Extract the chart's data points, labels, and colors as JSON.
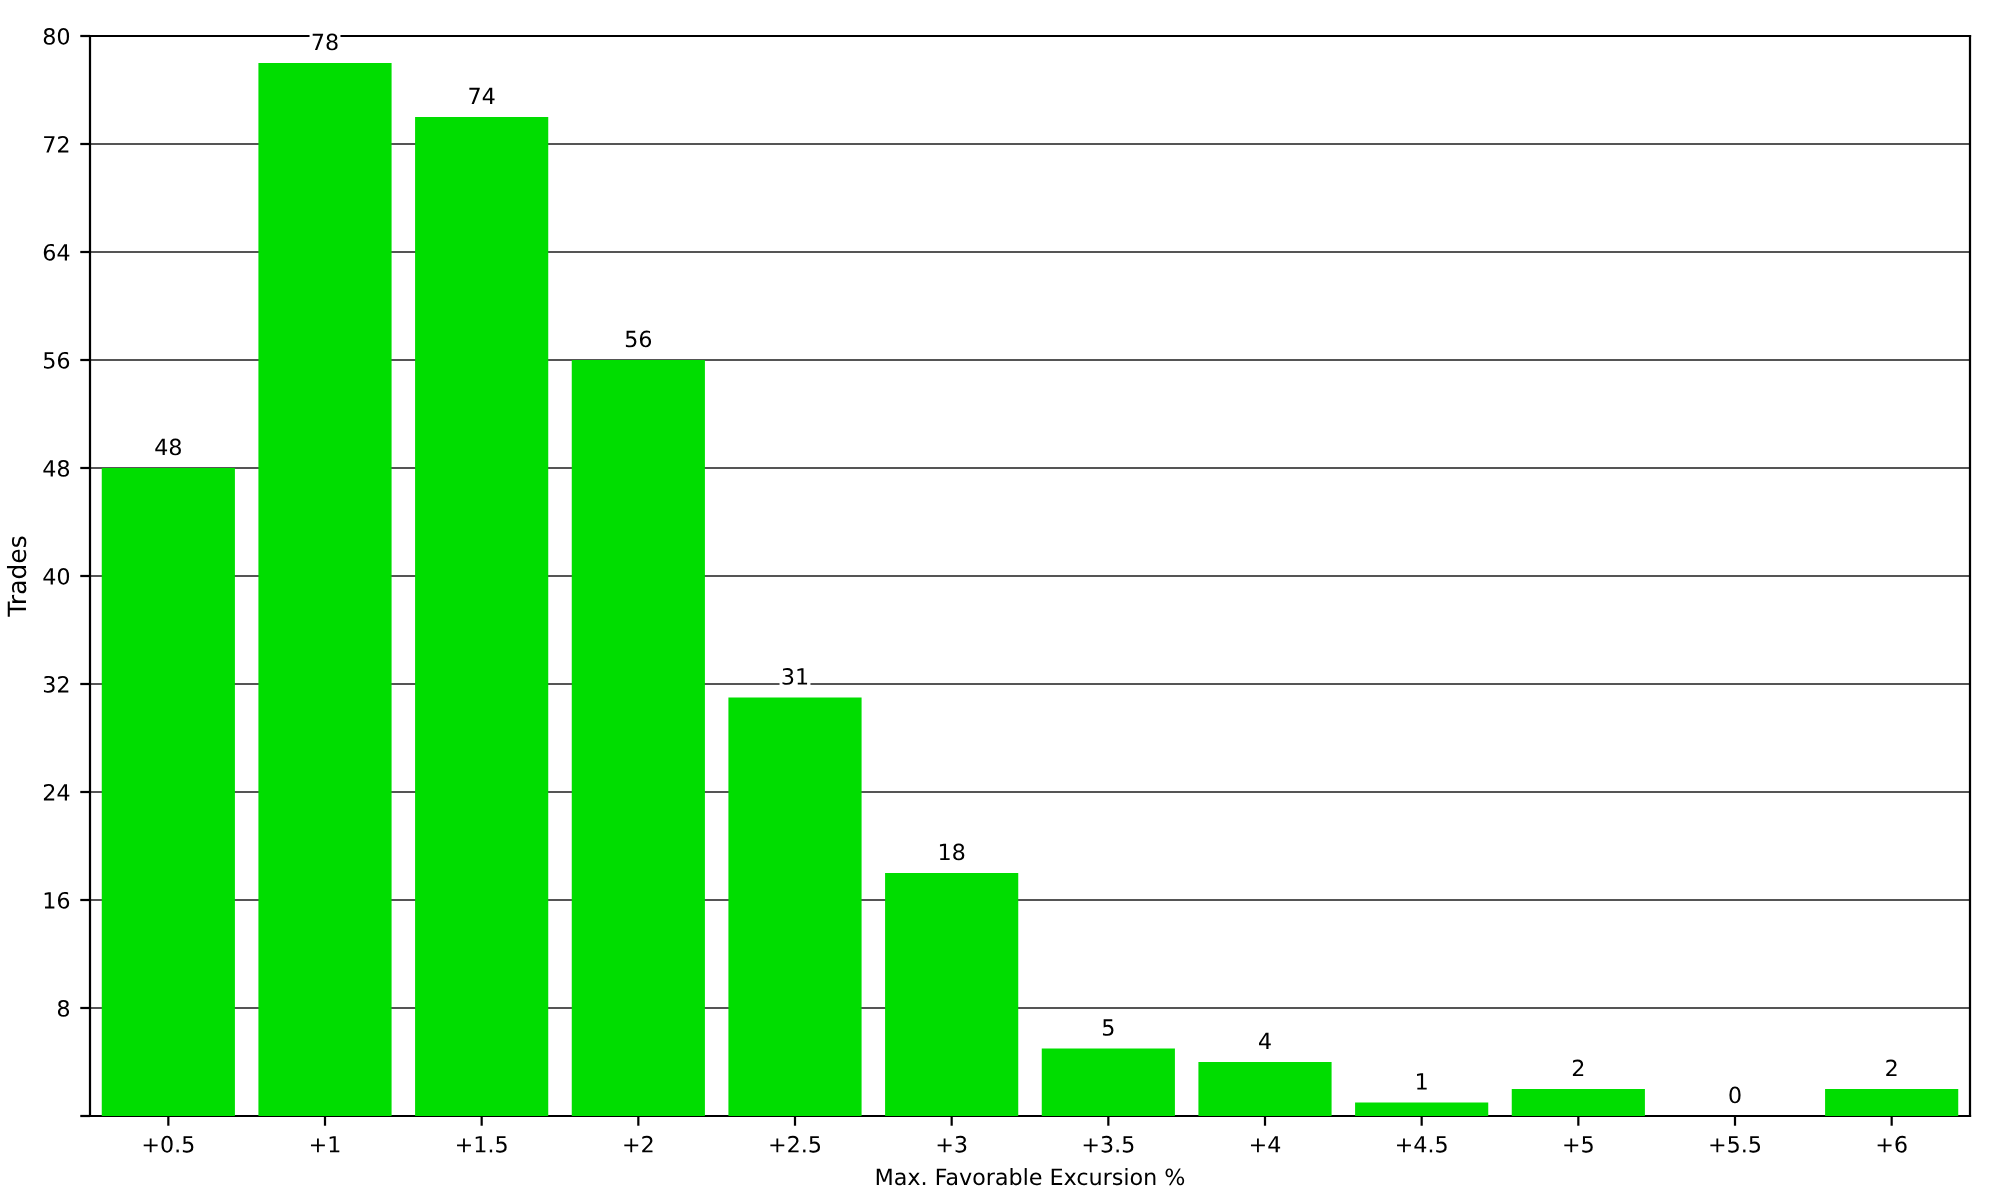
{
  "chart_data": {
    "type": "bar",
    "xlabel": "Max. Favorable Excursion %",
    "ylabel": "Trades",
    "categories": [
      "+0.5",
      "+1",
      "+1.5",
      "+2",
      "+2.5",
      "+3",
      "+3.5",
      "+4",
      "+4.5",
      "+5",
      "+5.5",
      "+6"
    ],
    "values": [
      48,
      78,
      74,
      56,
      31,
      18,
      5,
      4,
      1,
      2,
      0,
      2
    ],
    "color": "#00dd00",
    "ylim": [
      0,
      80
    ],
    "yticks": [
      {
        "value": 0,
        "label": null
      },
      8,
      16,
      24,
      32,
      40,
      48,
      56,
      64,
      72,
      80
    ],
    "grid": "y",
    "data_labels": true
  }
}
